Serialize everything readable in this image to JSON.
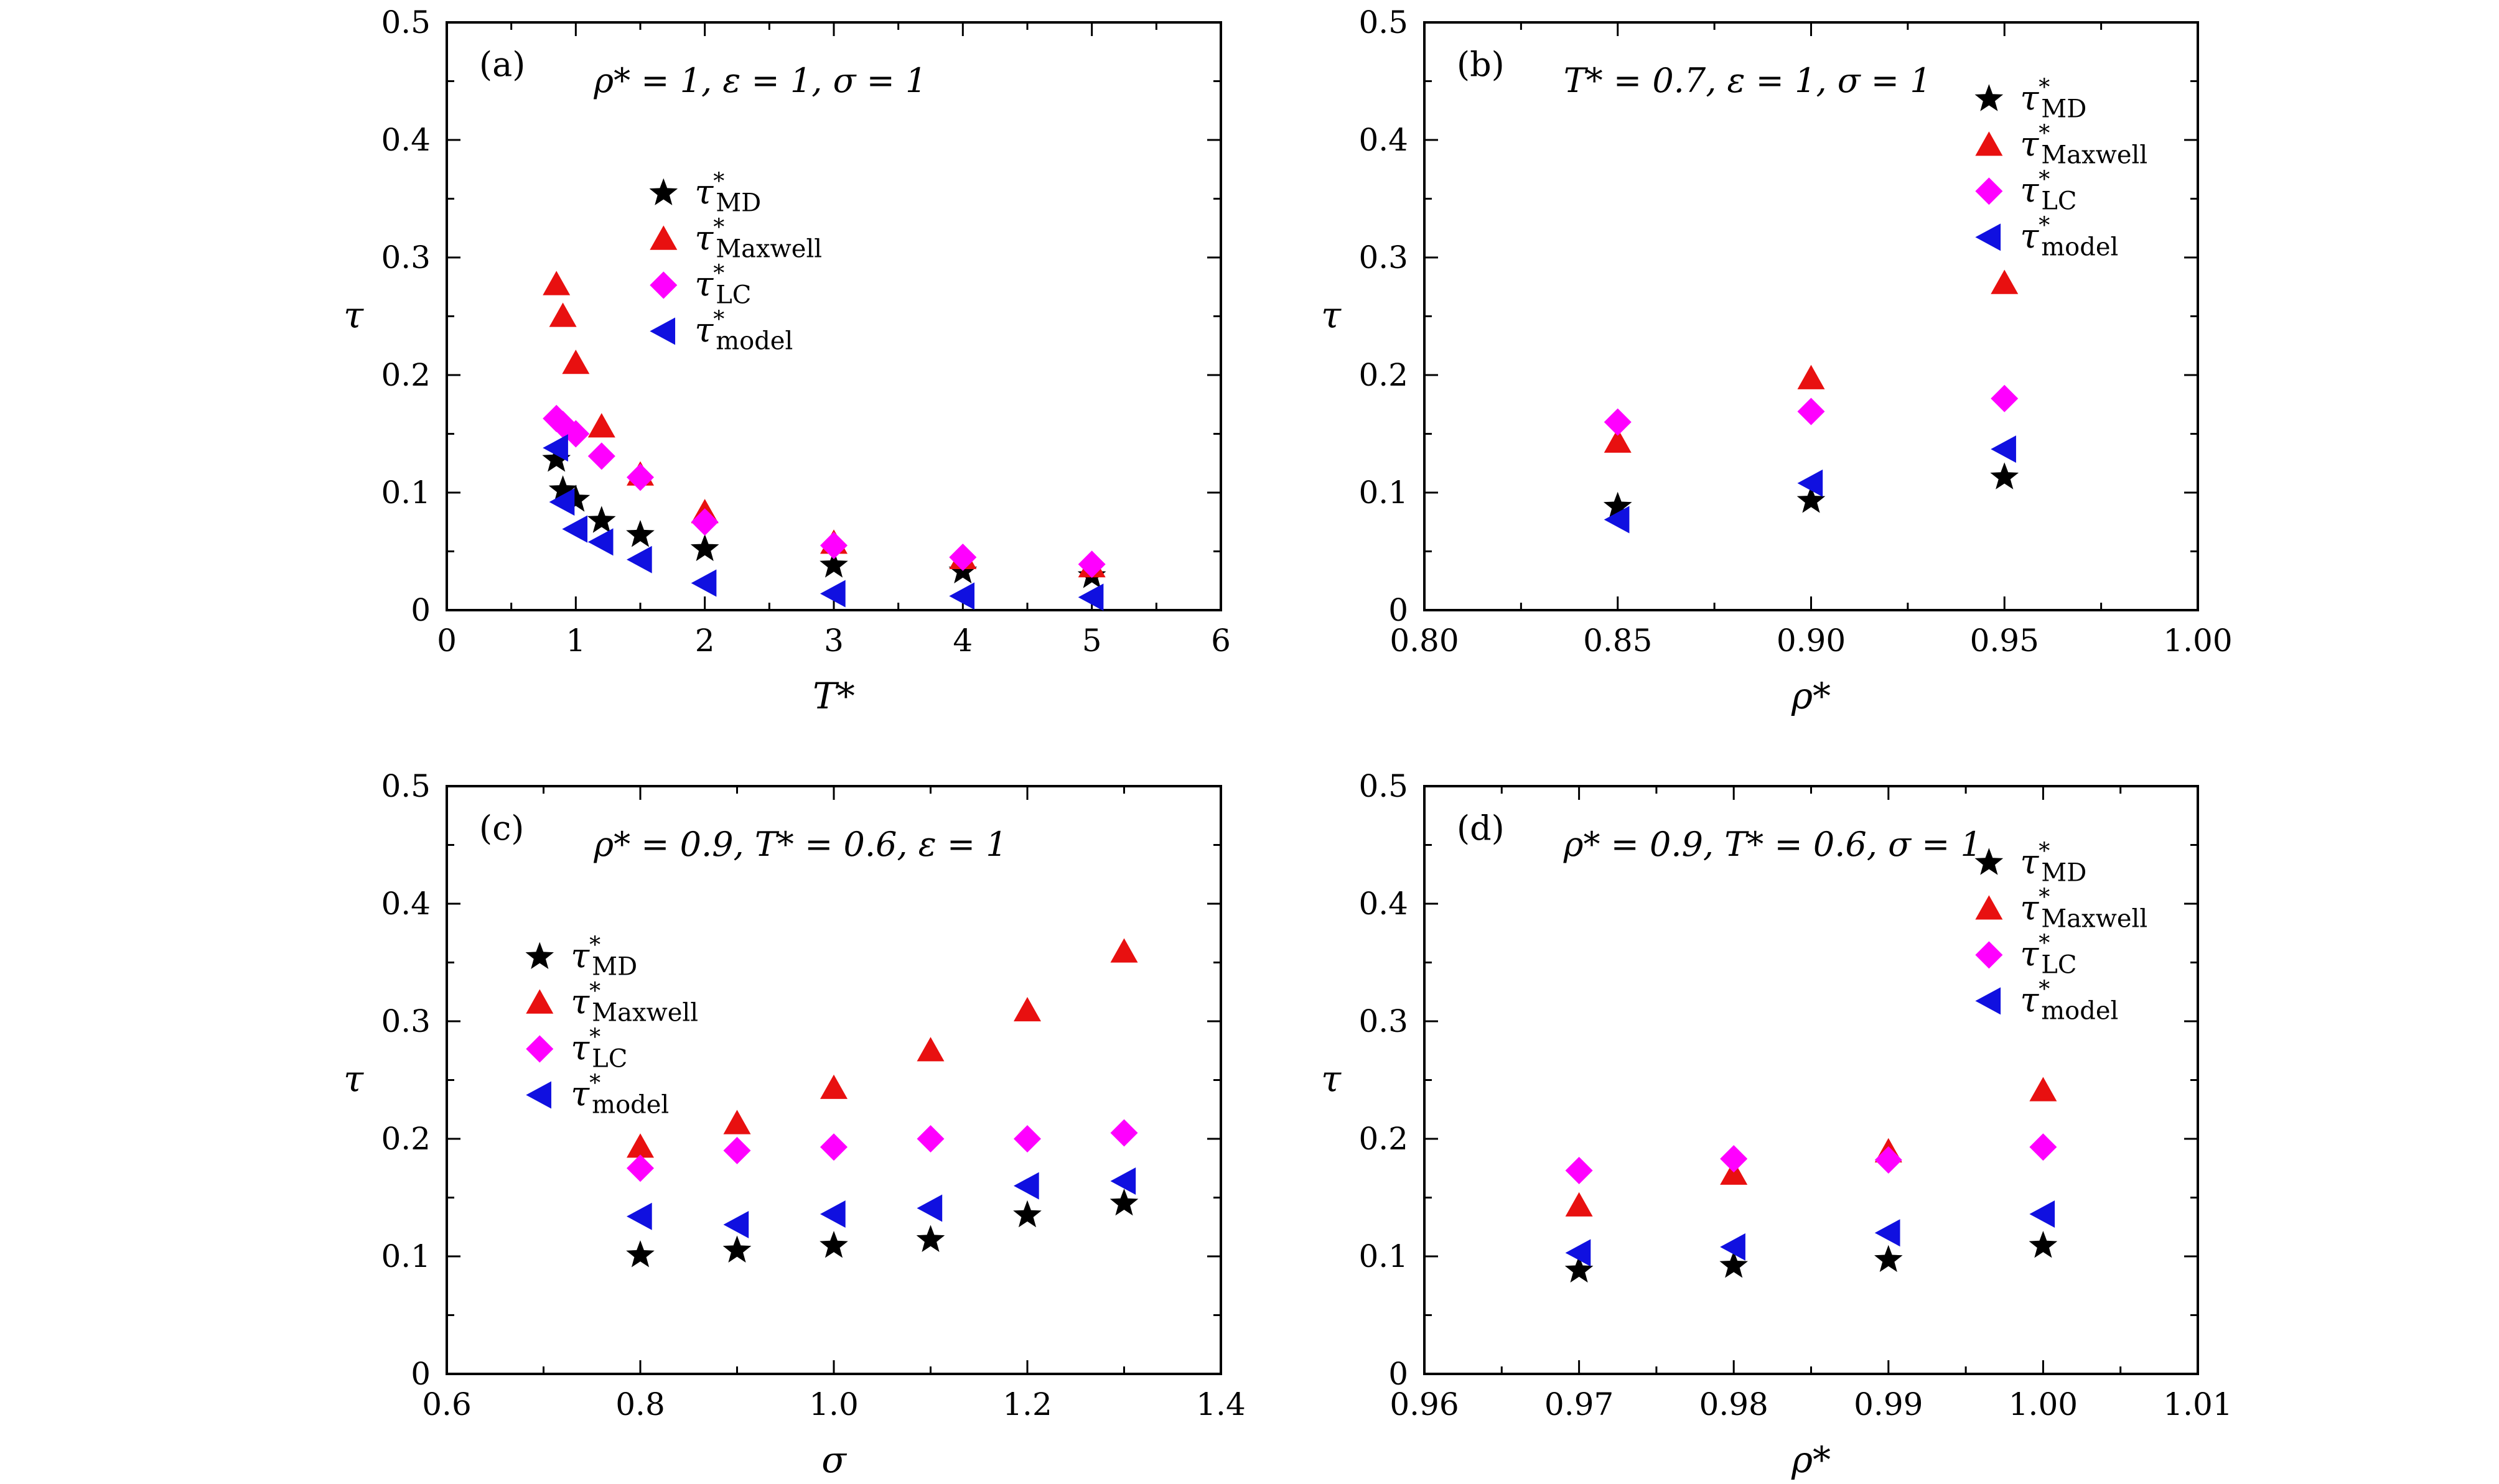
{
  "colors": {
    "MD": "#000000",
    "Maxwell": "#e81010",
    "LC": "#ff00ff",
    "model": "#1010e0"
  },
  "chart_data": [
    {
      "type": "scatter",
      "panel": "(a)",
      "condition": "ρ* = 1, ε = 1, σ = 1",
      "xlabel": "T*",
      "ylabel": "τ",
      "xlim": [
        0,
        6
      ],
      "ylim": [
        0,
        0.5
      ],
      "xticks": [
        0,
        1,
        2,
        3,
        4,
        5,
        6
      ],
      "xtick_labels": [
        "0",
        "1",
        "2",
        "3",
        "4",
        "5",
        "6"
      ],
      "yticks": [
        0,
        0.1,
        0.2,
        0.3,
        0.4,
        0.5
      ],
      "ytick_labels": [
        "0",
        "0.1",
        "0.2",
        "0.3",
        "0.4",
        "0.5"
      ],
      "legend_position": "upper-right",
      "series": [
        {
          "key": "MD",
          "base": "τ",
          "sup": "*",
          "sub": "MD",
          "marker": "star",
          "x": [
            0.85,
            0.9,
            1.0,
            1.2,
            1.5,
            2,
            3,
            4,
            5
          ],
          "y": [
            0.128,
            0.102,
            0.094,
            0.076,
            0.064,
            0.052,
            0.038,
            0.033,
            0.029
          ]
        },
        {
          "key": "Maxwell",
          "base": "τ",
          "sup": "*",
          "sub": "Maxwell",
          "marker": "triangle-up",
          "x": [
            0.85,
            0.9,
            1.0,
            1.2,
            1.5,
            2,
            3,
            4,
            5
          ],
          "y": [
            0.277,
            0.25,
            0.21,
            0.156,
            0.115,
            0.083,
            0.057,
            0.044,
            0.037
          ]
        },
        {
          "key": "LC",
          "base": "τ",
          "sup": "*",
          "sub": "LC",
          "marker": "diamond",
          "x": [
            0.85,
            0.9,
            1.0,
            1.2,
            1.5,
            2,
            3,
            4,
            5
          ],
          "y": [
            0.163,
            0.158,
            0.15,
            0.131,
            0.113,
            0.075,
            0.055,
            0.045,
            0.039
          ]
        },
        {
          "key": "model",
          "base": "τ",
          "sup": "*",
          "sub": "model",
          "marker": "triangle-left",
          "x": [
            0.85,
            0.9,
            1.0,
            1.2,
            1.5,
            2,
            3,
            4,
            5
          ],
          "y": [
            0.138,
            0.092,
            0.069,
            0.058,
            0.043,
            0.023,
            0.014,
            0.012,
            0.011
          ]
        }
      ]
    },
    {
      "type": "scatter",
      "panel": "(b)",
      "condition": "T* = 0.7, ε = 1, σ = 1",
      "xlabel": "ρ*",
      "ylabel": "τ",
      "xlim": [
        0.8,
        1.0
      ],
      "ylim": [
        0,
        0.5
      ],
      "xticks": [
        0.8,
        0.85,
        0.9,
        0.95,
        1.0
      ],
      "xtick_labels": [
        "0.80",
        "0.85",
        "0.90",
        "0.95",
        "1.00"
      ],
      "yticks": [
        0,
        0.1,
        0.2,
        0.3,
        0.4,
        0.5
      ],
      "ytick_labels": [
        "0",
        "0.1",
        "0.2",
        "0.3",
        "0.4",
        "0.5"
      ],
      "legend_position": "top-right",
      "series": [
        {
          "key": "MD",
          "base": "τ",
          "sup": "*",
          "sub": "MD",
          "marker": "star",
          "x": [
            0.85,
            0.9,
            0.95
          ],
          "y": [
            0.088,
            0.093,
            0.113
          ]
        },
        {
          "key": "Maxwell",
          "base": "τ",
          "sup": "*",
          "sub": "Maxwell",
          "marker": "triangle-up",
          "x": [
            0.85,
            0.9,
            0.95
          ],
          "y": [
            0.143,
            0.197,
            0.278
          ]
        },
        {
          "key": "LC",
          "base": "τ",
          "sup": "*",
          "sub": "LC",
          "marker": "diamond",
          "x": [
            0.85,
            0.9,
            0.95
          ],
          "y": [
            0.16,
            0.169,
            0.18
          ]
        },
        {
          "key": "model",
          "base": "τ",
          "sup": "*",
          "sub": "model",
          "marker": "triangle-left",
          "x": [
            0.85,
            0.9,
            0.95
          ],
          "y": [
            0.077,
            0.108,
            0.137
          ]
        }
      ]
    },
    {
      "type": "scatter",
      "panel": "(c)",
      "condition": "ρ* = 0.9, T* = 0.6, ε = 1",
      "xlabel": "σ",
      "ylabel": "τ",
      "xlim": [
        0.6,
        1.4
      ],
      "ylim": [
        0,
        0.5
      ],
      "xticks": [
        0.6,
        0.8,
        1.0,
        1.2,
        1.4
      ],
      "xtick_labels": [
        "0.6",
        "0.8",
        "1.0",
        "1.2",
        "1.4"
      ],
      "yticks": [
        0,
        0.1,
        0.2,
        0.3,
        0.4,
        0.5
      ],
      "ytick_labels": [
        "0",
        "0.1",
        "0.2",
        "0.3",
        "0.4",
        "0.5"
      ],
      "legend_position": "upper-left",
      "series": [
        {
          "key": "MD",
          "base": "τ",
          "sup": "*",
          "sub": "MD",
          "marker": "star",
          "x": [
            0.8,
            0.9,
            1.0,
            1.1,
            1.2,
            1.3
          ],
          "y": [
            0.101,
            0.105,
            0.109,
            0.114,
            0.135,
            0.145
          ]
        },
        {
          "key": "Maxwell",
          "base": "τ",
          "sup": "*",
          "sub": "Maxwell",
          "marker": "triangle-up",
          "x": [
            0.8,
            0.9,
            1.0,
            1.1,
            1.2,
            1.3
          ],
          "y": [
            0.193,
            0.213,
            0.243,
            0.275,
            0.309,
            0.359
          ]
        },
        {
          "key": "LC",
          "base": "τ",
          "sup": "*",
          "sub": "LC",
          "marker": "diamond",
          "x": [
            0.8,
            0.9,
            1.0,
            1.1,
            1.2,
            1.3
          ],
          "y": [
            0.175,
            0.19,
            0.193,
            0.2,
            0.2,
            0.205
          ]
        },
        {
          "key": "model",
          "base": "τ",
          "sup": "*",
          "sub": "model",
          "marker": "triangle-left",
          "x": [
            0.8,
            0.9,
            1.0,
            1.1,
            1.2,
            1.3
          ],
          "y": [
            0.134,
            0.127,
            0.136,
            0.141,
            0.16,
            0.164
          ]
        }
      ]
    },
    {
      "type": "scatter",
      "panel": "(d)",
      "condition": "ρ* = 0.9, T* = 0.6, σ = 1",
      "xlabel": "ρ*",
      "ylabel": "τ",
      "xlim": [
        0.96,
        1.01
      ],
      "ylim": [
        0,
        0.5
      ],
      "xticks": [
        0.96,
        0.97,
        0.98,
        0.99,
        1.0,
        1.01
      ],
      "xtick_labels": [
        "0.96",
        "0.97",
        "0.98",
        "0.99",
        "1.00",
        "1.01"
      ],
      "yticks": [
        0,
        0.1,
        0.2,
        0.3,
        0.4,
        0.5
      ],
      "ytick_labels": [
        "0",
        "0.1",
        "0.2",
        "0.3",
        "0.4",
        "0.5"
      ],
      "legend_position": "top-right",
      "series": [
        {
          "key": "MD",
          "base": "τ",
          "sup": "*",
          "sub": "MD",
          "marker": "star",
          "x": [
            0.97,
            0.98,
            0.99,
            1.0
          ],
          "y": [
            0.088,
            0.092,
            0.097,
            0.109
          ]
        },
        {
          "key": "Maxwell",
          "base": "τ",
          "sup": "*",
          "sub": "Maxwell",
          "marker": "triangle-up",
          "x": [
            0.97,
            0.98,
            0.99,
            1.0
          ],
          "y": [
            0.143,
            0.17,
            0.189,
            0.241
          ]
        },
        {
          "key": "LC",
          "base": "τ",
          "sup": "*",
          "sub": "LC",
          "marker": "diamond",
          "x": [
            0.97,
            0.98,
            0.99,
            1.0
          ],
          "y": [
            0.173,
            0.183,
            0.182,
            0.193
          ]
        },
        {
          "key": "model",
          "base": "τ",
          "sup": "*",
          "sub": "model",
          "marker": "triangle-left",
          "x": [
            0.97,
            0.98,
            0.99,
            1.0
          ],
          "y": [
            0.103,
            0.108,
            0.12,
            0.136
          ]
        }
      ]
    }
  ]
}
